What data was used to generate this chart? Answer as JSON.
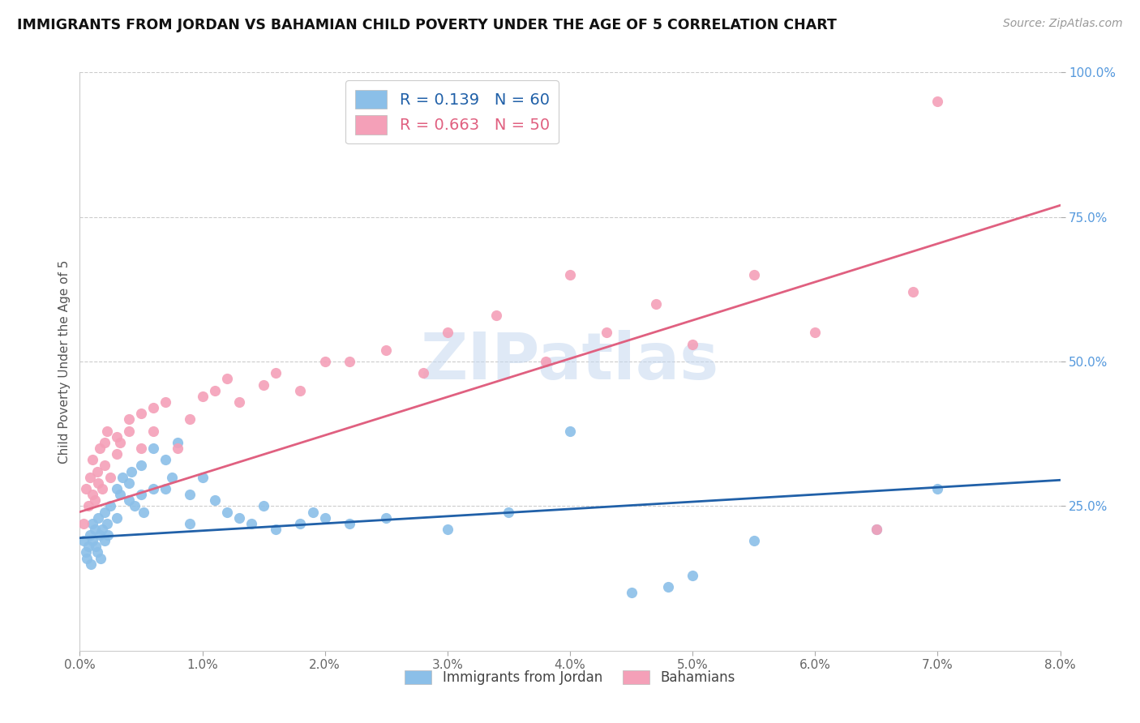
{
  "title": "IMMIGRANTS FROM JORDAN VS BAHAMIAN CHILD POVERTY UNDER THE AGE OF 5 CORRELATION CHART",
  "source": "Source: ZipAtlas.com",
  "ylabel": "Child Poverty Under the Age of 5",
  "xlim": [
    0.0,
    0.08
  ],
  "ylim": [
    0.0,
    1.0
  ],
  "xticks": [
    0.0,
    0.01,
    0.02,
    0.03,
    0.04,
    0.05,
    0.06,
    0.07,
    0.08
  ],
  "xticklabels": [
    "0.0%",
    "1.0%",
    "2.0%",
    "3.0%",
    "4.0%",
    "5.0%",
    "6.0%",
    "7.0%",
    "8.0%"
  ],
  "yticks": [
    0.25,
    0.5,
    0.75,
    1.0
  ],
  "yticklabels": [
    "25.0%",
    "50.0%",
    "75.0%",
    "100.0%"
  ],
  "blue_color": "#8bbfe8",
  "pink_color": "#f4a0b8",
  "blue_line_color": "#2060a8",
  "pink_line_color": "#e06080",
  "blue_label": "Immigrants from Jordan",
  "pink_label": "Bahamians",
  "blue_R": 0.139,
  "blue_N": 60,
  "pink_R": 0.663,
  "pink_N": 50,
  "watermark": "ZIPatlas",
  "blue_trend_x0": 0.0,
  "blue_trend_y0": 0.195,
  "blue_trend_x1": 0.08,
  "blue_trend_y1": 0.295,
  "pink_trend_x0": 0.0,
  "pink_trend_y0": 0.24,
  "pink_trend_x1": 0.08,
  "pink_trend_y1": 0.77,
  "blue_scatter_x": [
    0.0003,
    0.0005,
    0.0006,
    0.0007,
    0.0008,
    0.0009,
    0.001,
    0.001,
    0.0012,
    0.0013,
    0.0014,
    0.0015,
    0.0016,
    0.0017,
    0.0018,
    0.002,
    0.002,
    0.0022,
    0.0023,
    0.0025,
    0.003,
    0.003,
    0.0033,
    0.0035,
    0.004,
    0.004,
    0.0042,
    0.0045,
    0.005,
    0.005,
    0.0052,
    0.006,
    0.006,
    0.007,
    0.007,
    0.0075,
    0.008,
    0.009,
    0.009,
    0.01,
    0.011,
    0.012,
    0.013,
    0.014,
    0.015,
    0.016,
    0.018,
    0.019,
    0.02,
    0.022,
    0.025,
    0.03,
    0.035,
    0.04,
    0.045,
    0.048,
    0.05,
    0.055,
    0.065,
    0.07
  ],
  "blue_scatter_y": [
    0.19,
    0.17,
    0.16,
    0.18,
    0.2,
    0.15,
    0.22,
    0.19,
    0.21,
    0.18,
    0.17,
    0.23,
    0.2,
    0.16,
    0.21,
    0.19,
    0.24,
    0.22,
    0.2,
    0.25,
    0.28,
    0.23,
    0.27,
    0.3,
    0.26,
    0.29,
    0.31,
    0.25,
    0.27,
    0.32,
    0.24,
    0.35,
    0.28,
    0.33,
    0.28,
    0.3,
    0.36,
    0.27,
    0.22,
    0.3,
    0.26,
    0.24,
    0.23,
    0.22,
    0.25,
    0.21,
    0.22,
    0.24,
    0.23,
    0.22,
    0.23,
    0.21,
    0.24,
    0.38,
    0.1,
    0.11,
    0.13,
    0.19,
    0.21,
    0.28
  ],
  "pink_scatter_x": [
    0.0003,
    0.0005,
    0.0007,
    0.0008,
    0.001,
    0.001,
    0.0012,
    0.0014,
    0.0015,
    0.0016,
    0.0018,
    0.002,
    0.002,
    0.0022,
    0.0025,
    0.003,
    0.003,
    0.0033,
    0.004,
    0.004,
    0.005,
    0.005,
    0.006,
    0.006,
    0.007,
    0.008,
    0.009,
    0.01,
    0.011,
    0.012,
    0.013,
    0.015,
    0.016,
    0.018,
    0.02,
    0.022,
    0.025,
    0.028,
    0.03,
    0.034,
    0.038,
    0.04,
    0.043,
    0.047,
    0.05,
    0.055,
    0.06,
    0.065,
    0.068,
    0.07
  ],
  "pink_scatter_y": [
    0.22,
    0.28,
    0.25,
    0.3,
    0.27,
    0.33,
    0.26,
    0.31,
    0.29,
    0.35,
    0.28,
    0.32,
    0.36,
    0.38,
    0.3,
    0.34,
    0.37,
    0.36,
    0.4,
    0.38,
    0.35,
    0.41,
    0.42,
    0.38,
    0.43,
    0.35,
    0.4,
    0.44,
    0.45,
    0.47,
    0.43,
    0.46,
    0.48,
    0.45,
    0.5,
    0.5,
    0.52,
    0.48,
    0.55,
    0.58,
    0.5,
    0.65,
    0.55,
    0.6,
    0.53,
    0.65,
    0.55,
    0.21,
    0.62,
    0.95
  ]
}
